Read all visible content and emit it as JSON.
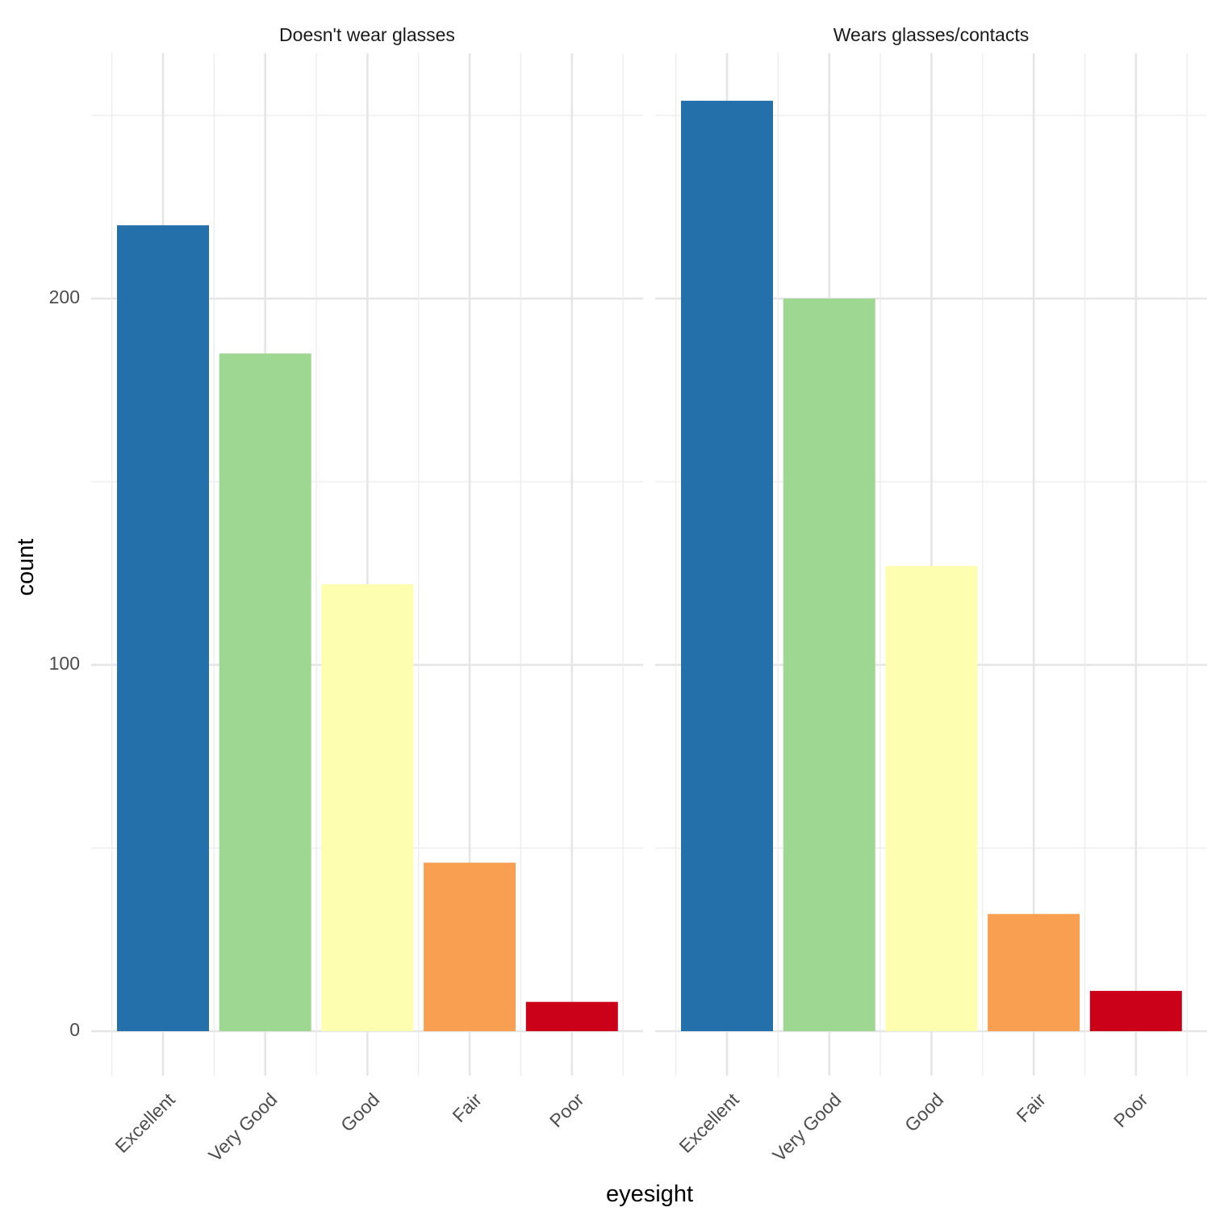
{
  "chart_data": {
    "type": "bar",
    "categories": [
      "Excellent",
      "Very Good",
      "Good",
      "Fair",
      "Poor"
    ],
    "colors": [
      "#2470AA",
      "#9ED792",
      "#FDFEB0",
      "#F99F52",
      "#CB011A"
    ],
    "facets": [
      {
        "title": "Doesn't wear glasses",
        "values": [
          220,
          185,
          122,
          46,
          8
        ]
      },
      {
        "title": "Wears glasses/contacts",
        "values": [
          254,
          200,
          127,
          32,
          11
        ]
      }
    ],
    "xlabel": "eyesight",
    "ylabel": "count",
    "yticks": [
      0,
      100,
      200
    ],
    "yminor": [
      50,
      150,
      250
    ],
    "ylim": [
      -12,
      266
    ],
    "grid": true
  }
}
